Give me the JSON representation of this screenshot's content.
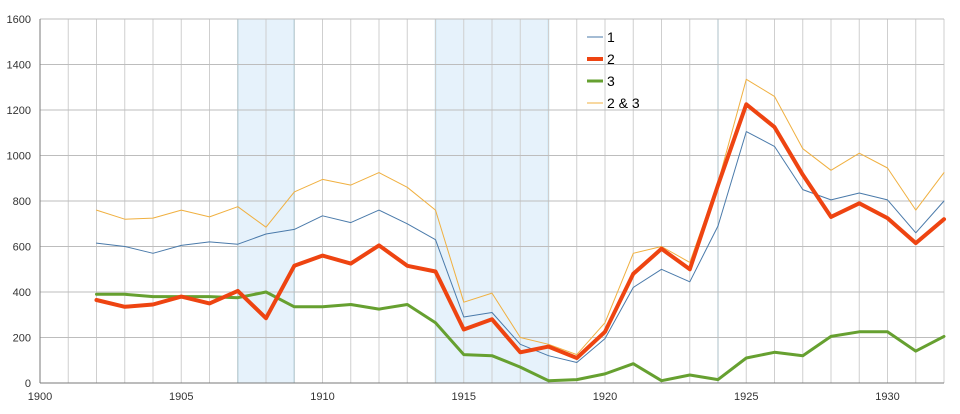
{
  "chart_data": {
    "type": "line",
    "title": "",
    "xlabel": "",
    "ylabel": "",
    "xlim": [
      1900,
      1932
    ],
    "ylim": [
      0,
      1600
    ],
    "x_ticks": [
      1900,
      1905,
      1910,
      1915,
      1920,
      1925,
      1930
    ],
    "y_ticks": [
      0,
      200,
      400,
      600,
      800,
      1000,
      1200,
      1400,
      1600
    ],
    "grid": true,
    "legend_position": "top-center",
    "shaded_ranges": [
      [
        1907,
        1909
      ],
      [
        1914,
        1918
      ],
      [
        1924,
        1924
      ]
    ],
    "x": [
      1902,
      1903,
      1904,
      1905,
      1906,
      1907,
      1908,
      1909,
      1910,
      1911,
      1912,
      1913,
      1914,
      1915,
      1916,
      1917,
      1918,
      1919,
      1920,
      1921,
      1922,
      1923,
      1924,
      1925,
      1926,
      1927,
      1928,
      1929,
      1930,
      1931,
      1932
    ],
    "series": [
      {
        "name": "1",
        "color": "#4a7aaa",
        "width": 1,
        "values": [
          615,
          600,
          570,
          605,
          620,
          610,
          655,
          675,
          735,
          705,
          760,
          700,
          630,
          290,
          310,
          170,
          120,
          90,
          195,
          420,
          500,
          445,
          690,
          1105,
          1040,
          850,
          805,
          835,
          805,
          660,
          800
        ]
      },
      {
        "name": "2",
        "color": "#ee4411",
        "width": 4,
        "values": [
          365,
          335,
          345,
          380,
          350,
          405,
          285,
          515,
          560,
          525,
          605,
          515,
          490,
          235,
          280,
          135,
          160,
          110,
          225,
          480,
          590,
          500,
          870,
          1225,
          1125,
          915,
          730,
          790,
          725,
          615,
          720
        ]
      },
      {
        "name": "3",
        "color": "#66a030",
        "width": 3,
        "values": [
          390,
          390,
          380,
          380,
          380,
          375,
          400,
          335,
          335,
          345,
          325,
          345,
          265,
          125,
          120,
          70,
          10,
          15,
          40,
          85,
          10,
          35,
          15,
          110,
          135,
          120,
          205,
          225,
          225,
          140,
          205
        ]
      },
      {
        "name": "2 & 3",
        "color": "#f0b040",
        "width": 1,
        "values": [
          760,
          720,
          725,
          760,
          730,
          775,
          685,
          840,
          895,
          870,
          925,
          860,
          760,
          355,
          395,
          200,
          170,
          125,
          265,
          570,
          600,
          530,
          880,
          1335,
          1260,
          1030,
          935,
          1010,
          945,
          760,
          925
        ]
      }
    ]
  }
}
